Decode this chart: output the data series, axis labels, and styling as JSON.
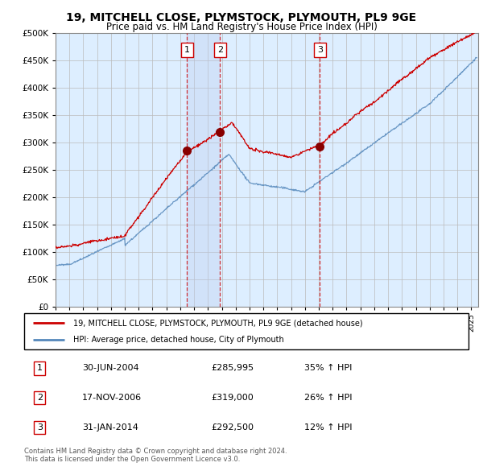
{
  "title": "19, MITCHELL CLOSE, PLYMSTOCK, PLYMOUTH, PL9 9GE",
  "subtitle": "Price paid vs. HM Land Registry's House Price Index (HPI)",
  "legend_line1": "19, MITCHELL CLOSE, PLYMSTOCK, PLYMOUTH, PL9 9GE (detached house)",
  "legend_line2": "HPI: Average price, detached house, City of Plymouth",
  "sale_dates": [
    2004.496,
    2006.88,
    2014.08
  ],
  "sale_prices": [
    285995,
    319000,
    292500
  ],
  "sale_labels": [
    "1",
    "2",
    "3"
  ],
  "sale_info": [
    [
      "1",
      "30-JUN-2004",
      "£285,995",
      "35% ↑ HPI"
    ],
    [
      "2",
      "17-NOV-2006",
      "£319,000",
      "26% ↑ HPI"
    ],
    [
      "3",
      "31-JAN-2014",
      "£292,500",
      "12% ↑ HPI"
    ]
  ],
  "footer1": "Contains HM Land Registry data © Crown copyright and database right 2024.",
  "footer2": "This data is licensed under the Open Government Licence v3.0.",
  "red_color": "#cc0000",
  "blue_color": "#5588bb",
  "background_color": "#ddeeff",
  "plot_bg_color": "#ffffff",
  "ylim": [
    0,
    500000
  ],
  "xlim_start": 1995,
  "xlim_end": 2025.5
}
